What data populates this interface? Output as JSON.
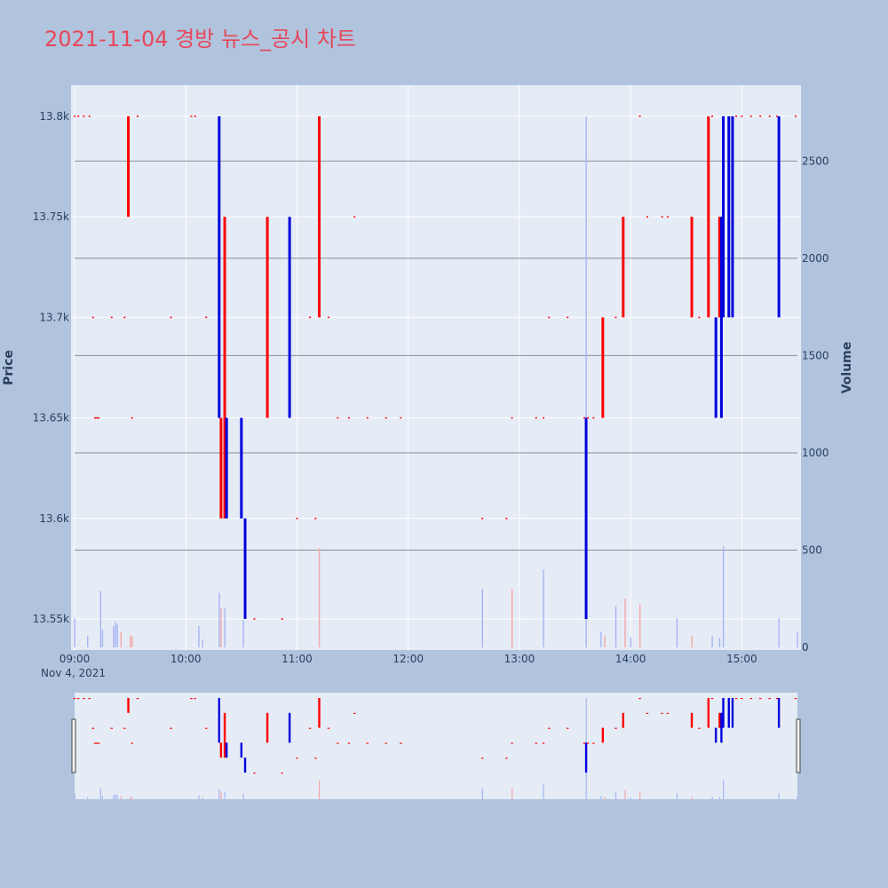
{
  "chart_data": {
    "type": "ohlc",
    "title": "2021-11-04 경방 뉴스_공시 차트",
    "y_label": "Price",
    "y2_label": "Volume",
    "x_range": [
      "09:00",
      "15:30"
    ],
    "x_ticks": [
      "09:00",
      "10:00",
      "11:00",
      "12:00",
      "13:00",
      "14:00",
      "15:00"
    ],
    "x_date_label": "Nov 4, 2021",
    "y_range": [
      13535,
      13815
    ],
    "y_ticks": [
      13550,
      13600,
      13650,
      13700,
      13750,
      13800
    ],
    "y_tick_labels": [
      "13.55k",
      "13.6k",
      "13.65k",
      "13.7k",
      "13.75k",
      "13.8k"
    ],
    "y2_range": [
      0,
      2730
    ],
    "y2_ticks": [
      0,
      500,
      1000,
      1500,
      2000,
      2500
    ],
    "y2_tick_labels": [
      "0",
      "500",
      "1000",
      "1500",
      "2000",
      "2500"
    ],
    "colors": {
      "up": "#ff0000",
      "down": "#0000dd",
      "vol_up": "#f4a6a6",
      "vol_down": "#a6b4f4",
      "title": "#e8475a"
    },
    "candles": [
      {
        "t": "09:00",
        "o": 13800,
        "c": 13800
      },
      {
        "t": "09:02",
        "o": 13800,
        "c": 13800
      },
      {
        "t": "09:05",
        "o": 13800,
        "c": 13800
      },
      {
        "t": "09:08",
        "o": 13800,
        "c": 13800
      },
      {
        "t": "09:10",
        "o": 13700,
        "c": 13700
      },
      {
        "t": "09:11",
        "o": 13650,
        "c": 13650
      },
      {
        "t": "09:12",
        "o": 13650,
        "c": 13650
      },
      {
        "t": "09:13",
        "o": 13650,
        "c": 13650
      },
      {
        "t": "09:20",
        "o": 13700,
        "c": 13700
      },
      {
        "t": "09:27",
        "o": 13700,
        "c": 13700
      },
      {
        "t": "09:29",
        "o": 13750,
        "c": 13800
      },
      {
        "t": "09:31",
        "o": 13650,
        "c": 13650
      },
      {
        "t": "09:34",
        "o": 13800,
        "c": 13800
      },
      {
        "t": "09:52",
        "o": 13700,
        "c": 13700
      },
      {
        "t": "10:03",
        "o": 13800,
        "c": 13800
      },
      {
        "t": "10:05",
        "o": 13800,
        "c": 13800
      },
      {
        "t": "10:11",
        "o": 13700,
        "c": 13700
      },
      {
        "t": "10:18",
        "o": 13800,
        "c": 13650
      },
      {
        "t": "10:19",
        "o": 13600,
        "c": 13650
      },
      {
        "t": "10:21",
        "o": 13600,
        "c": 13750
      },
      {
        "t": "10:22",
        "o": 13650,
        "c": 13600
      },
      {
        "t": "10:30",
        "o": 13650,
        "c": 13600
      },
      {
        "t": "10:32",
        "o": 13600,
        "c": 13550
      },
      {
        "t": "10:37",
        "o": 13550,
        "c": 13550
      },
      {
        "t": "10:44",
        "o": 13650,
        "c": 13750
      },
      {
        "t": "10:52",
        "o": 13550,
        "c": 13550
      },
      {
        "t": "10:56",
        "o": 13750,
        "c": 13650
      },
      {
        "t": "11:00",
        "o": 13600,
        "c": 13600
      },
      {
        "t": "11:07",
        "o": 13700,
        "c": 13700
      },
      {
        "t": "11:10",
        "o": 13600,
        "c": 13600
      },
      {
        "t": "11:12",
        "o": 13700,
        "c": 13800
      },
      {
        "t": "11:17",
        "o": 13700,
        "c": 13700
      },
      {
        "t": "11:22",
        "o": 13650,
        "c": 13650
      },
      {
        "t": "11:28",
        "o": 13650,
        "c": 13650
      },
      {
        "t": "11:31",
        "o": 13750,
        "c": 13750
      },
      {
        "t": "11:38",
        "o": 13650,
        "c": 13650
      },
      {
        "t": "11:48",
        "o": 13650,
        "c": 13650
      },
      {
        "t": "11:56",
        "o": 13650,
        "c": 13650
      },
      {
        "t": "12:40",
        "o": 13600,
        "c": 13600
      },
      {
        "t": "12:53",
        "o": 13600,
        "c": 13600
      },
      {
        "t": "12:56",
        "o": 13650,
        "c": 13650
      },
      {
        "t": "13:09",
        "o": 13650,
        "c": 13650
      },
      {
        "t": "13:13",
        "o": 13650,
        "c": 13650
      },
      {
        "t": "13:16",
        "o": 13700,
        "c": 13700
      },
      {
        "t": "13:26",
        "o": 13700,
        "c": 13700
      },
      {
        "t": "13:35",
        "o": 13650,
        "c": 13650
      },
      {
        "t": "13:36",
        "o": 13650,
        "c": 13550
      },
      {
        "t": "13:37",
        "o": 13650,
        "c": 13650
      },
      {
        "t": "13:40",
        "o": 13650,
        "c": 13650
      },
      {
        "t": "13:45",
        "o": 13650,
        "c": 13700
      },
      {
        "t": "13:52",
        "o": 13700,
        "c": 13700
      },
      {
        "t": "13:56",
        "o": 13700,
        "c": 13750
      },
      {
        "t": "14:05",
        "o": 13800,
        "c": 13800
      },
      {
        "t": "14:09",
        "o": 13750,
        "c": 13750
      },
      {
        "t": "14:17",
        "o": 13750,
        "c": 13750
      },
      {
        "t": "14:20",
        "o": 13750,
        "c": 13750
      },
      {
        "t": "14:33",
        "o": 13700,
        "c": 13750
      },
      {
        "t": "14:37",
        "o": 13700,
        "c": 13700
      },
      {
        "t": "14:42",
        "o": 13700,
        "c": 13800
      },
      {
        "t": "14:44",
        "o": 13800,
        "c": 13800
      },
      {
        "t": "14:46",
        "o": 13700,
        "c": 13650
      },
      {
        "t": "14:48",
        "o": 13700,
        "c": 13750
      },
      {
        "t": "14:49",
        "o": 13750,
        "c": 13650
      },
      {
        "t": "14:50",
        "o": 13800,
        "c": 13700
      },
      {
        "t": "14:53",
        "o": 13800,
        "c": 13700
      },
      {
        "t": "14:55",
        "o": 13800,
        "c": 13700
      },
      {
        "t": "14:57",
        "o": 13800,
        "c": 13800
      },
      {
        "t": "15:00",
        "o": 13800,
        "c": 13800
      },
      {
        "t": "15:05",
        "o": 13800,
        "c": 13800
      },
      {
        "t": "15:10",
        "o": 13800,
        "c": 13800
      },
      {
        "t": "15:15",
        "o": 13800,
        "c": 13800
      },
      {
        "t": "15:19",
        "o": 13800,
        "c": 13800
      },
      {
        "t": "15:20",
        "o": 13800,
        "c": 13700
      },
      {
        "t": "15:29",
        "o": 13800,
        "c": 13800
      }
    ],
    "volume": [
      {
        "t": "09:00",
        "v": 150,
        "up": false
      },
      {
        "t": "09:07",
        "v": 60,
        "up": false
      },
      {
        "t": "09:14",
        "v": 290,
        "up": false
      },
      {
        "t": "09:15",
        "v": 90,
        "up": false
      },
      {
        "t": "09:21",
        "v": 110,
        "up": false
      },
      {
        "t": "09:22",
        "v": 130,
        "up": false
      },
      {
        "t": "09:23",
        "v": 120,
        "up": false
      },
      {
        "t": "09:25",
        "v": 80,
        "up": true
      },
      {
        "t": "09:30",
        "v": 60,
        "up": true
      },
      {
        "t": "09:31",
        "v": 55,
        "up": true
      },
      {
        "t": "10:07",
        "v": 110,
        "up": false
      },
      {
        "t": "10:09",
        "v": 40,
        "up": false
      },
      {
        "t": "10:18",
        "v": 280,
        "up": false
      },
      {
        "t": "10:19",
        "v": 200,
        "up": true
      },
      {
        "t": "10:21",
        "v": 200,
        "up": false
      },
      {
        "t": "10:31",
        "v": 140,
        "up": false
      },
      {
        "t": "11:12",
        "v": 510,
        "up": true
      },
      {
        "t": "12:40",
        "v": 300,
        "up": false
      },
      {
        "t": "12:56",
        "v": 300,
        "up": true
      },
      {
        "t": "13:13",
        "v": 400,
        "up": false
      },
      {
        "t": "13:36",
        "v": 2730,
        "up": false
      },
      {
        "t": "13:44",
        "v": 80,
        "up": false
      },
      {
        "t": "13:46",
        "v": 60,
        "up": true
      },
      {
        "t": "13:52",
        "v": 210,
        "up": false
      },
      {
        "t": "13:57",
        "v": 250,
        "up": true
      },
      {
        "t": "14:00",
        "v": 50,
        "up": false
      },
      {
        "t": "14:05",
        "v": 220,
        "up": true
      },
      {
        "t": "14:25",
        "v": 150,
        "up": false
      },
      {
        "t": "14:33",
        "v": 60,
        "up": true
      },
      {
        "t": "14:44",
        "v": 60,
        "up": false
      },
      {
        "t": "14:48",
        "v": 50,
        "up": false
      },
      {
        "t": "14:50",
        "v": 520,
        "up": false
      },
      {
        "t": "15:20",
        "v": 150,
        "up": false
      },
      {
        "t": "15:30",
        "v": 80,
        "up": false
      }
    ]
  }
}
